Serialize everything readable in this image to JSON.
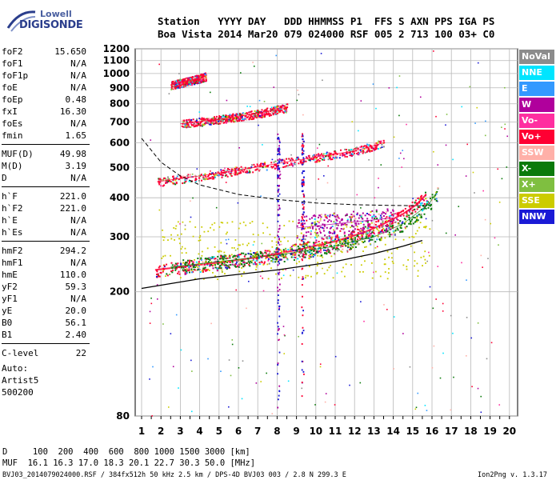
{
  "logo": {
    "top": "Lowell",
    "bottom": "DIGISONDE"
  },
  "header": {
    "row1": "Station   YYYY DAY   DDD HHMMSS P1  FFS S AXN PPS IGA PS",
    "row2": "Boa Vista 2014 Mar20 079 024000 RSF 005 2 713 100 03+ C0"
  },
  "params": [
    {
      "name": "foF2",
      "value": "15.650"
    },
    {
      "name": "foF1",
      "value": "N/A"
    },
    {
      "name": "foF1p",
      "value": "N/A"
    },
    {
      "name": "foE",
      "value": "N/A"
    },
    {
      "name": "foEp",
      "value": "0.48"
    },
    {
      "name": "fxI",
      "value": "16.30"
    },
    {
      "name": "foEs",
      "value": "N/A"
    },
    {
      "name": "fmin",
      "value": "1.65"
    },
    {
      "name": "MUF(D)",
      "value": "49.98"
    },
    {
      "name": "M(D)",
      "value": "3.19"
    },
    {
      "name": "D",
      "value": "N/A"
    },
    {
      "name": "h`F",
      "value": "221.0"
    },
    {
      "name": "h`F2",
      "value": "221.0"
    },
    {
      "name": "h`E",
      "value": "N/A"
    },
    {
      "name": "h`Es",
      "value": "N/A"
    },
    {
      "name": "hmF2",
      "value": "294.2"
    },
    {
      "name": "hmF1",
      "value": "N/A"
    },
    {
      "name": "hmE",
      "value": "110.0"
    },
    {
      "name": "yF2",
      "value": "59.3"
    },
    {
      "name": "yF1",
      "value": "N/A"
    },
    {
      "name": "yE",
      "value": "20.0"
    },
    {
      "name": "B0",
      "value": "56.1"
    },
    {
      "name": "B1",
      "value": "2.40"
    },
    {
      "name": "C-level",
      "value": "22"
    }
  ],
  "auto": {
    "line1": "Auto:",
    "line2": "Artist5",
    "line3": "500200"
  },
  "legend": [
    {
      "label": "NoVal",
      "color": "#8c8c8c"
    },
    {
      "label": "NNE",
      "color": "#00e5ff"
    },
    {
      "label": "E",
      "color": "#3399ff"
    },
    {
      "label": "W",
      "color": "#b0009c"
    },
    {
      "label": "Vo-",
      "color": "#ff2fa0"
    },
    {
      "label": "Vo+",
      "color": "#ff0033"
    },
    {
      "label": "SSW",
      "color": "#ffb0a8"
    },
    {
      "label": "X-",
      "color": "#0a7a0a"
    },
    {
      "label": "X+",
      "color": "#7fbf40"
    },
    {
      "label": "SSE",
      "color": "#cccc00"
    },
    {
      "label": "NNW",
      "color": "#1a1ad6"
    }
  ],
  "footer": {
    "row1": "D     100  200  400  600  800 1000 1500 3000 [km]",
    "row2": "MUF  16.1 16.3 17.0 18.3 20.1 22.7 30.3 50.0 [MHz]",
    "file": "BVJ03_2014079024000.RSF / 384fx512h 50 kHz 2.5 km / DPS-4D BVJ03 003 / 2.8 N 299.3 E",
    "version": "Ion2Png v. 1.3.17"
  },
  "chart_data": {
    "type": "scatter",
    "title": "",
    "xlabel": "",
    "ylabel": "",
    "xlim": [
      1,
      20
    ],
    "ylim": [
      80,
      1200
    ],
    "xticks": [
      1,
      2,
      3,
      4,
      5,
      6,
      7,
      8,
      9,
      10,
      11,
      12,
      13,
      14,
      15,
      16,
      17,
      18,
      19,
      20
    ],
    "yticks": [
      80,
      200,
      300,
      400,
      500,
      600,
      700,
      800,
      900,
      1000,
      1100,
      1200
    ],
    "grid": true,
    "scale_y": "log",
    "series": [
      {
        "trace": "o-trace-F2",
        "color": "#ff0033",
        "x": [
          1.7,
          3,
          5,
          7,
          9,
          11,
          12.5,
          13.5,
          14.5,
          15.2,
          15.7
        ],
        "y": [
          235,
          240,
          248,
          258,
          272,
          290,
          310,
          330,
          355,
          380,
          410
        ]
      },
      {
        "trace": "x-trace-F2",
        "color": "#0a7a0a",
        "x": [
          2.5,
          5,
          8,
          11,
          13,
          14.5,
          15.8,
          16.3
        ],
        "y": [
          240,
          250,
          262,
          280,
          300,
          330,
          380,
          420
        ]
      },
      {
        "trace": "multihop-2",
        "color": "#ff0033",
        "x": [
          1.8,
          4,
          6,
          8,
          10,
          12,
          13.5
        ],
        "y": [
          450,
          470,
          490,
          515,
          540,
          565,
          600
        ]
      },
      {
        "trace": "multihop-3",
        "color": "#ff0033",
        "x": [
          3,
          5,
          7,
          8.5
        ],
        "y": [
          690,
          715,
          745,
          780
        ]
      },
      {
        "trace": "multihop-4",
        "color": "#ff0033",
        "x": [
          2.5,
          3.5,
          4.3
        ],
        "y": [
          920,
          950,
          980
        ]
      },
      {
        "trace": "spread-F",
        "color": "#b0009c",
        "x": [
          9,
          10,
          11,
          12,
          13,
          14
        ],
        "y": [
          320,
          325,
          330,
          335,
          340,
          345
        ]
      }
    ],
    "profile_curve": {
      "x": [
        1,
        4,
        8,
        11,
        13,
        14.5,
        15.5
      ],
      "y": [
        205,
        220,
        235,
        250,
        265,
        280,
        292
      ]
    },
    "dashed_curve": {
      "x": [
        1,
        2,
        3,
        4,
        6,
        8,
        10,
        12,
        14,
        15.7
      ],
      "y": [
        620,
        520,
        470,
        440,
        410,
        395,
        385,
        380,
        378,
        377
      ]
    }
  }
}
